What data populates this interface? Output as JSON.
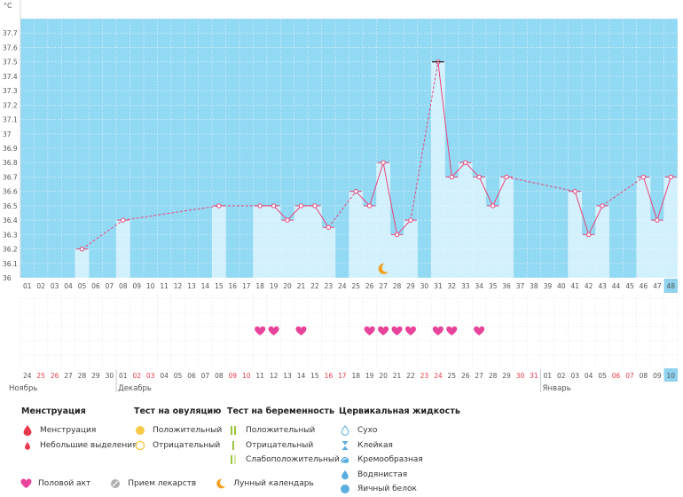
{
  "chart_data": {
    "type": "line",
    "y_unit": "°C",
    "ylim": [
      36.0,
      37.8
    ],
    "yticks": [
      "36",
      "36.1",
      "36.2",
      "36.3",
      "36.4",
      "36.5",
      "36.6",
      "36.7",
      "36.8",
      "36.9",
      "37",
      "37.1",
      "37.2",
      "37.3",
      "37.4",
      "37.5",
      "37.6",
      "37.7"
    ],
    "grid": true,
    "highlighted_cycle_day": 48,
    "cycle_days": [
      "01",
      "02",
      "03",
      "04",
      "05",
      "06",
      "07",
      "08",
      "09",
      "10",
      "11",
      "12",
      "13",
      "14",
      "15",
      "16",
      "17",
      "18",
      "19",
      "20",
      "21",
      "22",
      "23",
      "24",
      "25",
      "26",
      "27",
      "28",
      "29",
      "30",
      "31",
      "32",
      "33",
      "34",
      "35",
      "36",
      "37",
      "38",
      "39",
      "40",
      "41",
      "42",
      "43",
      "44",
      "45",
      "46",
      "47",
      "48"
    ],
    "dates": [
      "24",
      "25",
      "26",
      "27",
      "28",
      "29",
      "30",
      "01",
      "02",
      "03",
      "04",
      "05",
      "06",
      "07",
      "08",
      "09",
      "10",
      "11",
      "12",
      "13",
      "14",
      "15",
      "16",
      "17",
      "18",
      "19",
      "20",
      "21",
      "22",
      "23",
      "24",
      "25",
      "26",
      "27",
      "28",
      "29",
      "30",
      "31",
      "01",
      "02",
      "03",
      "04",
      "05",
      "06",
      "07",
      "08",
      "09",
      "10"
    ],
    "date_red": [
      false,
      true,
      true,
      false,
      false,
      false,
      false,
      false,
      true,
      true,
      false,
      false,
      false,
      false,
      false,
      true,
      true,
      false,
      false,
      false,
      false,
      false,
      true,
      true,
      false,
      false,
      false,
      false,
      false,
      true,
      true,
      false,
      false,
      false,
      false,
      false,
      true,
      true,
      false,
      false,
      false,
      false,
      false,
      true,
      true,
      false,
      false,
      false
    ],
    "months": [
      {
        "label": "Ноябрь",
        "start_index": 0
      },
      {
        "label": "Декабрь",
        "start_index": 7
      },
      {
        "label": "Январь",
        "start_index": 38
      }
    ],
    "temperatures": [
      {
        "day": 5,
        "temp": 36.2
      },
      {
        "day": 8,
        "temp": 36.4
      },
      {
        "day": 15,
        "temp": 36.5
      },
      {
        "day": 18,
        "temp": 36.5
      },
      {
        "day": 19,
        "temp": 36.5
      },
      {
        "day": 20,
        "temp": 36.4
      },
      {
        "day": 21,
        "temp": 36.5
      },
      {
        "day": 22,
        "temp": 36.5
      },
      {
        "day": 23,
        "temp": 36.35
      },
      {
        "day": 25,
        "temp": 36.6
      },
      {
        "day": 26,
        "temp": 36.5
      },
      {
        "day": 27,
        "temp": 36.8
      },
      {
        "day": 28,
        "temp": 36.3
      },
      {
        "day": 29,
        "temp": 36.4
      },
      {
        "day": 31,
        "temp": 37.5
      },
      {
        "day": 32,
        "temp": 36.7
      },
      {
        "day": 33,
        "temp": 36.8
      },
      {
        "day": 34,
        "temp": 36.7
      },
      {
        "day": 35,
        "temp": 36.5
      },
      {
        "day": 36,
        "temp": 36.7
      },
      {
        "day": 41,
        "temp": 36.6
      },
      {
        "day": 42,
        "temp": 36.3
      },
      {
        "day": 43,
        "temp": 36.5
      },
      {
        "day": 46,
        "temp": 36.7
      },
      {
        "day": 47,
        "temp": 36.4
      },
      {
        "day": 48,
        "temp": 36.7
      }
    ],
    "intercourse_days": [
      18,
      19,
      21,
      26,
      27,
      28,
      29,
      31,
      32,
      34
    ],
    "moon_days": [
      27
    ]
  },
  "legend": {
    "menstruation": {
      "title": "Менструация",
      "items": [
        {
          "label": "Менструация",
          "icon": "drop-large-icon",
          "color": "#e8394d"
        },
        {
          "label": "Небольшие выделения",
          "icon": "drop-small-icon",
          "color": "#e8394d"
        }
      ]
    },
    "ovulation_test": {
      "title": "Тест на овуляцию",
      "items": [
        {
          "label": "Положительный",
          "icon": "circle-filled-icon",
          "color": "#f7c948"
        },
        {
          "label": "Отрицательный",
          "icon": "circle-outline-icon",
          "color": "#f7c948"
        }
      ]
    },
    "pregnancy_test": {
      "title": "Тест на беременность",
      "items": [
        {
          "label": "Положительный",
          "icon": "double-line-icon",
          "color": "#9bc53d"
        },
        {
          "label": "Отрицательный",
          "icon": "single-line-icon",
          "color": "#9bc53d"
        },
        {
          "label": "Слабоположительный",
          "icon": "faint-line-icon",
          "color": "#9bc53d"
        }
      ]
    },
    "cervical_fluid": {
      "title": "Цервикальная жидкость",
      "items": [
        {
          "label": "Сухо",
          "icon": "empty-drop-icon",
          "color": "#5aaee0"
        },
        {
          "label": "Клейкая",
          "icon": "sticky-icon",
          "color": "#5aaee0"
        },
        {
          "label": "Кремообразная",
          "icon": "creamy-icon",
          "color": "#5aaee0"
        },
        {
          "label": "Водянистая",
          "icon": "watery-drop-icon",
          "color": "#5aaee0"
        },
        {
          "label": "Яичный белок",
          "icon": "egg-white-icon",
          "color": "#5aaee0"
        }
      ]
    },
    "bottom": [
      {
        "label": "Половой акт",
        "icon": "heart-icon",
        "color": "#e8439b"
      },
      {
        "label": "Прием лекарств",
        "icon": "pill-icon",
        "color": "#b0b0b0"
      },
      {
        "label": "Лунный календарь",
        "icon": "moon-icon",
        "color": "#f0a020"
      }
    ]
  },
  "colors": {
    "plot_background": "#92d9f3",
    "bar_fill": "#d2f1fc",
    "line": "#e8457a",
    "point_fill": "#ffffff",
    "heart": "#e8439b",
    "highlight": "#8fd3ef",
    "weekend_date": "#e8394d",
    "moon": "#f0a020"
  }
}
